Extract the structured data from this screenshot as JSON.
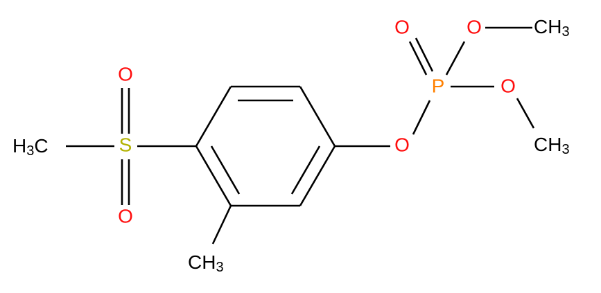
{
  "atoms": [
    {
      "label": "H",
      "sub": "3",
      "tail": "C"
    },
    {
      "label": "S"
    },
    {
      "label": "O"
    },
    {
      "label": "O"
    },
    {
      "label": "C",
      "tail": "H",
      "sub": "3"
    },
    {
      "label": "O"
    },
    {
      "label": "P"
    },
    {
      "label": "O"
    },
    {
      "label": "O"
    },
    {
      "label": "C",
      "tail": "H",
      "sub": "3"
    },
    {
      "label": "O"
    },
    {
      "label": "C",
      "tail": "H",
      "sub": "3"
    }
  ]
}
